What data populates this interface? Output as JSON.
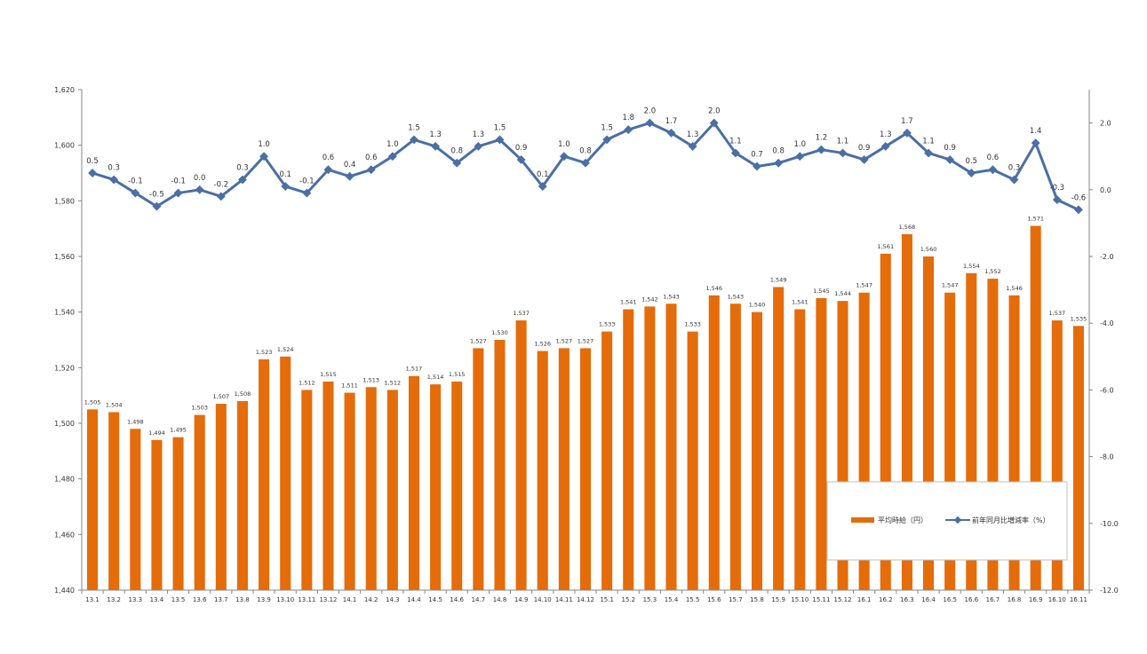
{
  "chart_data": {
    "type": "bar+line",
    "categories": [
      "13.1",
      "13.2",
      "13.3",
      "13.4",
      "13.5",
      "13.6",
      "13.7",
      "13.8",
      "13.9",
      "13.10",
      "13.11",
      "13.12",
      "14.1",
      "14.2",
      "14.3",
      "14.4",
      "14.5",
      "14.6",
      "14.7",
      "14.8",
      "14.9",
      "14.10",
      "14.11",
      "14.12",
      "15.1",
      "15.2",
      "15.3",
      "15.4",
      "15.5",
      "15.6",
      "15.7",
      "15.8",
      "15.9",
      "15.10",
      "15.11",
      "15.12",
      "16.1",
      "16.2",
      "16.3",
      "16.4",
      "16.5",
      "16.6",
      "16.7",
      "16.8",
      "16.9",
      "16.10",
      "16.11"
    ],
    "series": [
      {
        "name": "平均時給（円）",
        "type": "bar",
        "axis": "left",
        "color": "#E46C0A",
        "values": [
          1505,
          1504,
          1498,
          1494,
          1495,
          1503,
          1507,
          1508,
          1523,
          1524,
          1512,
          1515,
          1511,
          1513,
          1512,
          1517,
          1514,
          1515,
          1527,
          1530,
          1537,
          1526,
          1527,
          1527,
          1533,
          1541,
          1542,
          1543,
          1533,
          1546,
          1543,
          1540,
          1549,
          1541,
          1545,
          1544,
          1547,
          1561,
          1568,
          1560,
          1547,
          1554,
          1552,
          1546,
          1571,
          1537,
          1535
        ]
      },
      {
        "name": "前年同月比増減率（%）",
        "type": "line",
        "axis": "right",
        "color": "#4A6FA5",
        "marker": "diamond",
        "values": [
          0.5,
          0.3,
          -0.1,
          -0.5,
          -0.1,
          0.0,
          -0.2,
          0.3,
          1.0,
          0.1,
          -0.1,
          0.6,
          0.4,
          0.6,
          1.0,
          1.5,
          1.3,
          0.8,
          1.3,
          1.5,
          0.9,
          0.1,
          1.0,
          0.8,
          1.5,
          1.8,
          2.0,
          1.7,
          1.3,
          2.0,
          1.1,
          0.7,
          0.8,
          1.0,
          1.2,
          1.1,
          0.9,
          1.3,
          1.7,
          1.1,
          0.9,
          0.5,
          0.6,
          0.3,
          1.4,
          -0.3,
          -0.6
        ]
      }
    ],
    "y_left": {
      "min": 1440,
      "max": 1620,
      "step": 20,
      "ticks": [
        "1,440",
        "1,460",
        "1,480",
        "1,500",
        "1,520",
        "1,540",
        "1,560",
        "1,580",
        "1,600",
        "1,620"
      ]
    },
    "y_right": {
      "min": -12.0,
      "max": 3.0,
      "step": 2.0,
      "ticks": [
        "-12.0",
        "-10.0",
        "-8.0",
        "-6.0",
        "-4.0",
        "-2.0",
        "0.0",
        "2.0"
      ]
    },
    "grid": false,
    "legend_position": "bottom-right"
  }
}
